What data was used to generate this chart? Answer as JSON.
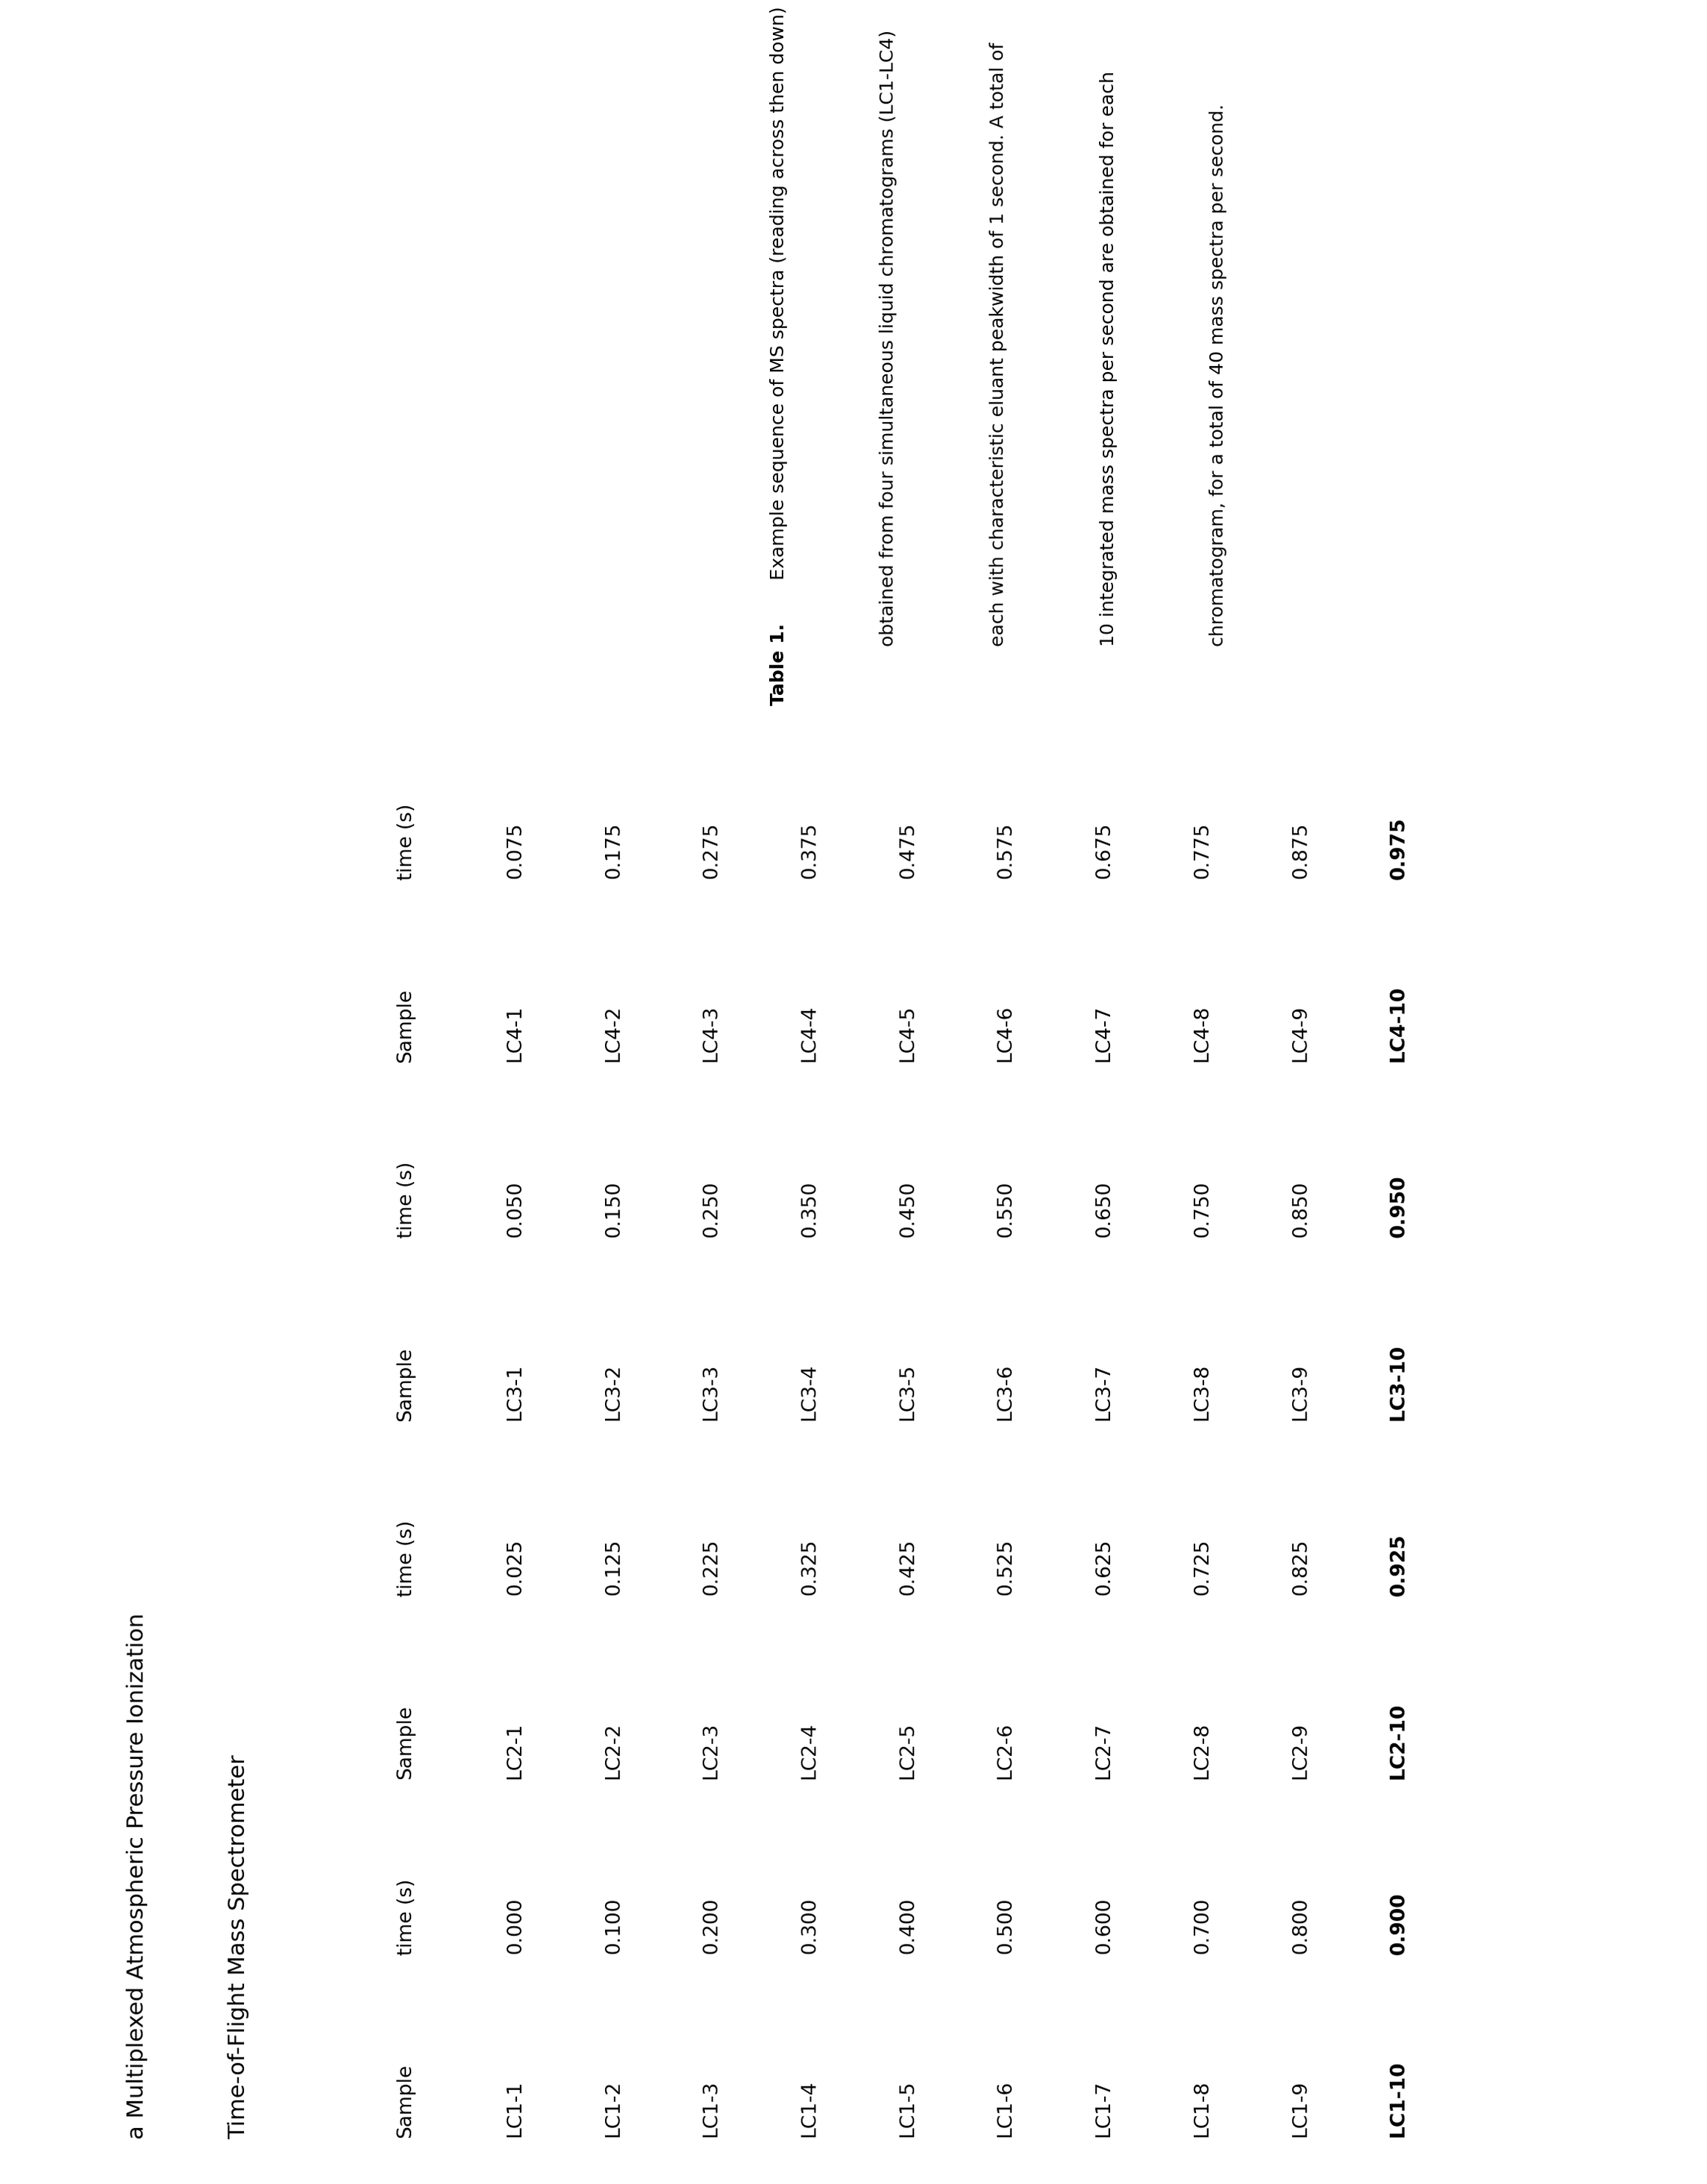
{
  "title_line1": "a Multiplexed Atmospheric Pressure Ionization",
  "title_line2": "Time-of-Flight Mass Spectrometer",
  "columns": [
    {
      "sample_header": "Sample",
      "time_header": "time (s)",
      "samples": [
        "LC1-1",
        "LC1-2",
        "LC1-3",
        "LC1-4",
        "LC1-5",
        "LC1-6",
        "LC1-7",
        "LC1-8",
        "LC1-9",
        "LC1-10"
      ],
      "times": [
        "0.000",
        "0.100",
        "0.200",
        "0.300",
        "0.400",
        "0.500",
        "0.600",
        "0.700",
        "0.800",
        "0.900"
      ]
    },
    {
      "sample_header": "Sample",
      "time_header": "time (s)",
      "samples": [
        "LC2-1",
        "LC2-2",
        "LC2-3",
        "LC2-4",
        "LC2-5",
        "LC2-6",
        "LC2-7",
        "LC2-8",
        "LC2-9",
        "LC2-10"
      ],
      "times": [
        "0.025",
        "0.125",
        "0.225",
        "0.325",
        "0.425",
        "0.525",
        "0.625",
        "0.725",
        "0.825",
        "0.925"
      ]
    },
    {
      "sample_header": "Sample",
      "time_header": "time (s)",
      "samples": [
        "LC3-1",
        "LC3-2",
        "LC3-3",
        "LC3-4",
        "LC3-5",
        "LC3-6",
        "LC3-7",
        "LC3-8",
        "LC3-9",
        "LC3-10"
      ],
      "times": [
        "0.050",
        "0.150",
        "0.250",
        "0.350",
        "0.450",
        "0.550",
        "0.650",
        "0.750",
        "0.850",
        "0.950"
      ]
    },
    {
      "sample_header": "Sample",
      "time_header": "time (s)",
      "samples": [
        "LC4-1",
        "LC4-2",
        "LC4-3",
        "LC4-4",
        "LC4-5",
        "LC4-6",
        "LC4-7",
        "LC4-8",
        "LC4-9",
        "LC4-10"
      ],
      "times": [
        "0.075",
        "0.175",
        "0.275",
        "0.375",
        "0.475",
        "0.575",
        "0.675",
        "0.775",
        "0.875",
        "0.975"
      ]
    }
  ],
  "caption_bold": "Table 1.",
  "caption_normal": " Example sequence of MS spectra (reading across then down)\nobtained from four simultaneous liquid chromatograms (LC1-LC4)\neach with characteristic eluant peakwidth of 1 second. A total of\n10 integrated mass spectra per second are obtained for each\nchromatogram, for a total of 40 mass spectra per second.",
  "title_fontsize": 22,
  "header_fontsize": 19,
  "data_fontsize": 19,
  "caption_fontsize": 18,
  "background_color": "#ffffff"
}
